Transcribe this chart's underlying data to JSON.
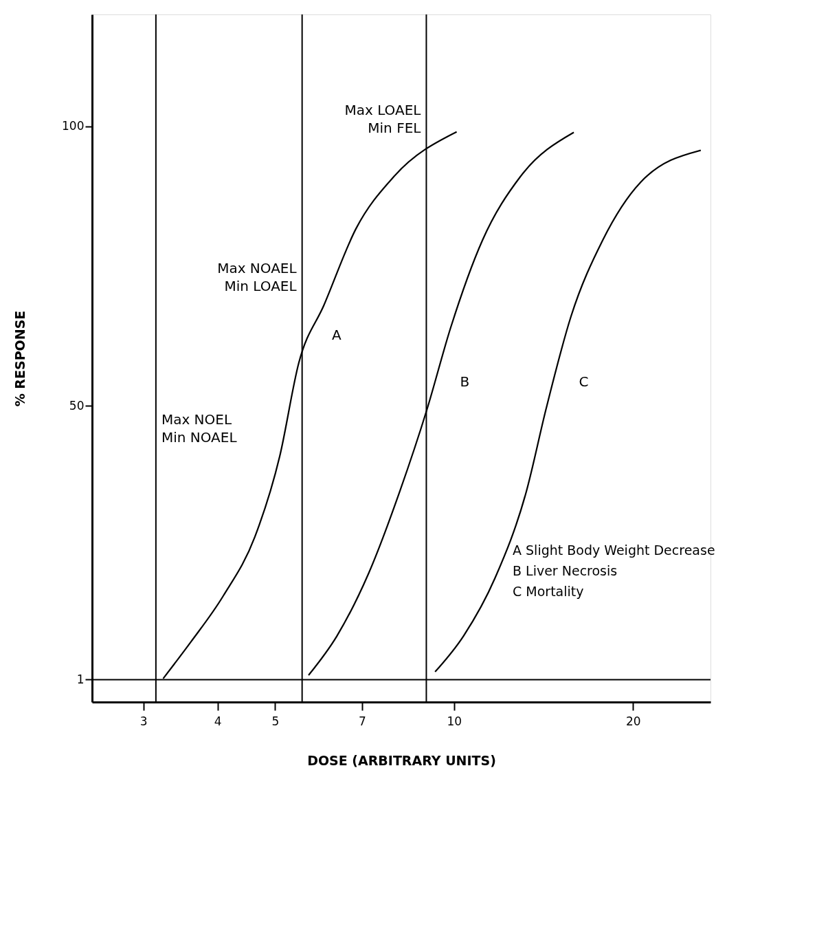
{
  "chart_data": {
    "type": "line",
    "xlabel": "DOSE (ARBITRARY UNITS)",
    "ylabel": "% RESPONSE",
    "log": "x",
    "xlim": [
      2.46,
      27
    ],
    "xticks": [
      3,
      4,
      5,
      7,
      10,
      20
    ],
    "ylim": [
      -3,
      120
    ],
    "yticks": [
      1,
      50,
      100
    ],
    "grid": false,
    "line_style": "solid",
    "marker": "none",
    "series": [
      {
        "name": "A",
        "color": "#000000",
        "x": [
          3.24,
          3.61,
          4.09,
          4.62,
          5.09,
          5.48,
          6.04,
          6.84,
          7.92,
          10.1
        ],
        "values": [
          1.2,
          7.8,
          16,
          26.5,
          41,
          57.7,
          68,
          81.7,
          91,
          99
        ]
      },
      {
        "name": "B",
        "color": "#000000",
        "x": [
          5.69,
          6.35,
          7.18,
          8.11,
          9.0,
          9.87,
          11.16,
          12.93,
          15.9
        ],
        "values": [
          1.8,
          8.8,
          20,
          34.8,
          49.3,
          64,
          79.6,
          91,
          98.9
        ]
      },
      {
        "name": "C",
        "color": "#000000",
        "x": [
          9.29,
          10.37,
          11.72,
          13.24,
          14.27,
          15.73,
          17.78,
          20.6,
          26
        ],
        "values": [
          2.4,
          8.8,
          19.2,
          34.8,
          49.3,
          66,
          79.6,
          90,
          95.7
        ]
      }
    ],
    "ref_lines": [
      {
        "axis": "x",
        "value": 3.15,
        "label": "Max NOEL\nMin NOAEL",
        "color": "#000000"
      },
      {
        "axis": "x",
        "value": 5.55,
        "label": "Max NOAEL\nMin LOAEL",
        "color": "#000000"
      },
      {
        "axis": "x",
        "value": 8.98,
        "label": "Max LOAEL\nMin FEL",
        "color": "#000000"
      },
      {
        "axis": "y",
        "value": 1,
        "color": "#000000"
      }
    ],
    "annotations": [
      "A  Slight Body Weight Decrease",
      "B  Liver Necrosis",
      "C  Mortality"
    ]
  }
}
